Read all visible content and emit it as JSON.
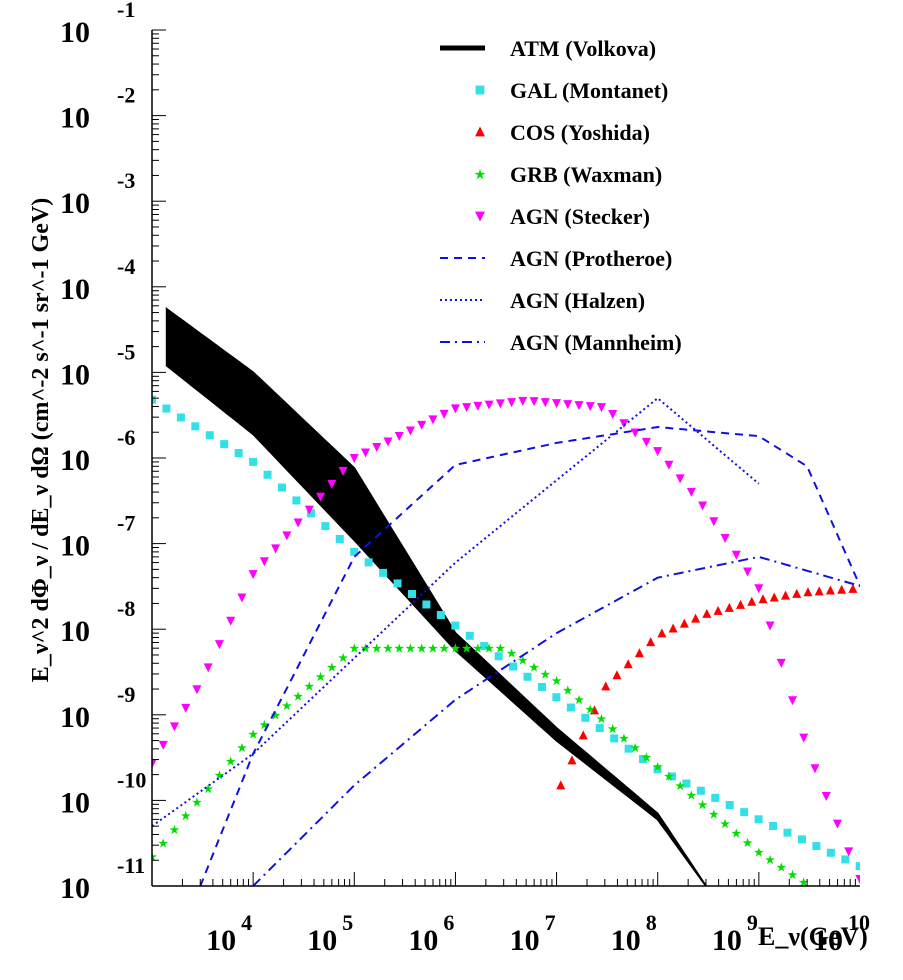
{
  "chart_data": {
    "type": "line",
    "title": "",
    "xlabel": "E_ν(GeV)",
    "ylabel": "E_ν^2 dΦ_ν / dE_ν dΩ (cm^-2 s^-1 sr^-1 GeV)",
    "x_scale": "log",
    "y_scale": "log",
    "xlim": [
      1000,
      10000000000
    ],
    "ylim": [
      1e-11,
      0.1
    ],
    "x_ticks": [
      {
        "exp": 4,
        "base": "10",
        "sup": "4"
      },
      {
        "exp": 5,
        "base": "10",
        "sup": "5"
      },
      {
        "exp": 6,
        "base": "10",
        "sup": "6"
      },
      {
        "exp": 7,
        "base": "10",
        "sup": "7"
      },
      {
        "exp": 8,
        "base": "10",
        "sup": "8"
      },
      {
        "exp": 9,
        "base": "10",
        "sup": "9"
      },
      {
        "exp": 10,
        "base": "10",
        "sup": "10"
      }
    ],
    "y_ticks": [
      {
        "exp": -1,
        "base": "10",
        "sup": "-1"
      },
      {
        "exp": -2,
        "base": "10",
        "sup": "-2"
      },
      {
        "exp": -3,
        "base": "10",
        "sup": "-3"
      },
      {
        "exp": -4,
        "base": "10",
        "sup": "-4"
      },
      {
        "exp": -5,
        "base": "10",
        "sup": "-5"
      },
      {
        "exp": -6,
        "base": "10",
        "sup": "-6"
      },
      {
        "exp": -7,
        "base": "10",
        "sup": "-7"
      },
      {
        "exp": -8,
        "base": "10",
        "sup": "-8"
      },
      {
        "exp": -9,
        "base": "10",
        "sup": "-9"
      },
      {
        "exp": -10,
        "base": "10",
        "sup": "-10"
      },
      {
        "exp": -11,
        "base": "10",
        "sup": "-11"
      }
    ],
    "legend_position": "top-right",
    "grid": false,
    "series": [
      {
        "name": "ATM (Volkova)",
        "style": "band",
        "color": "#000000",
        "x": [
          1400,
          10000.0,
          100000.0,
          1000000.0,
          10000000.0,
          100000000.0,
          300000000.0
        ],
        "y_high": [
          5.5e-05,
          1e-05,
          7.6e-07,
          9e-09,
          7e-10,
          7e-11,
          1e-11
        ],
        "y_low": [
          1.2e-05,
          1.9e-06,
          1.1e-07,
          5.7e-09,
          5e-10,
          6e-11,
          1e-11
        ]
      },
      {
        "name": "GAL (Montanet)",
        "style": "square",
        "color": "#33e0e6",
        "x": [
          1000,
          10000.0,
          100000.0,
          1000000.0,
          10000000.0,
          100000000.0,
          1000000000.0,
          10000000000.0
        ],
        "y": [
          4.8e-06,
          9e-07,
          8e-08,
          1.1e-08,
          1.6e-09,
          2.3e-10,
          6e-11,
          1.7e-11
        ]
      },
      {
        "name": "COS (Yoshida)",
        "style": "triangle-up",
        "color": "#ff0000",
        "x": [
          11000000.0,
          16000000.0,
          30000000.0,
          100000000.0,
          300000000.0,
          1000000000.0,
          3000000000.0,
          10000000000.0
        ],
        "y": [
          1.5e-10,
          4e-10,
          2.1e-09,
          8.5e-09,
          1.5e-08,
          2.2e-08,
          2.7e-08,
          3e-08
        ]
      },
      {
        "name": "GRB (Waxman)",
        "style": "star",
        "color": "#00dd00",
        "x": [
          1000,
          10000.0,
          100000.0,
          1000000.0,
          3000000.0,
          10000000.0,
          100000000.0,
          1000000000.0,
          10000000000.0
        ],
        "y": [
          2.2e-11,
          6e-10,
          6e-09,
          6e-09,
          6e-09,
          2.5e-09,
          2.5e-10,
          2.5e-11,
          4e-12
        ]
      },
      {
        "name": "AGN (Stecker)",
        "style": "triangle-down",
        "color": "#ff00ff",
        "x": [
          1000,
          3000,
          10000.0,
          100000.0,
          1000000.0,
          5000000.0,
          30000000.0,
          100000000.0,
          300000000.0,
          1000000000.0,
          3000000000.0,
          10000000000.0
        ],
        "y": [
          2.7e-10,
          2.3e-09,
          4.4e-08,
          1e-06,
          3.8e-06,
          4.7e-06,
          3.9e-06,
          1.2e-06,
          2.5e-07,
          3e-08,
          4e-10,
          1.2e-11
        ]
      },
      {
        "name": "AGN (Protheroe)",
        "style": "dashed",
        "color": "#1010e0",
        "x": [
          3000,
          10000.0,
          100000.0,
          1000000.0,
          10000000.0,
          100000000.0,
          1000000000.0,
          3000000000.0,
          10000000000.0
        ],
        "y": [
          1e-11,
          3.5e-10,
          7e-08,
          8.3e-07,
          1.5e-06,
          2.3e-06,
          1.8e-06,
          8e-07,
          3.2e-08
        ]
      },
      {
        "name": "AGN (Halzen)",
        "style": "dotted",
        "color": "#1010e0",
        "x": [
          1000,
          10000.0,
          100000.0,
          1000000.0,
          10000000.0,
          100000000.0,
          1000000000.0
        ],
        "y": [
          5e-11,
          3.5e-10,
          4.6e-09,
          6e-08,
          5.5e-07,
          5e-06,
          5e-07
        ]
      },
      {
        "name": "AGN (Mannheim)",
        "style": "dashdot",
        "color": "#1010e0",
        "x": [
          10000.0,
          100000.0,
          1000000.0,
          10000000.0,
          100000000.0,
          1000000000.0,
          10000000000.0
        ],
        "y": [
          1e-11,
          1.5e-10,
          1.5e-09,
          9e-09,
          4e-08,
          7e-08,
          3.2e-08
        ]
      }
    ]
  }
}
